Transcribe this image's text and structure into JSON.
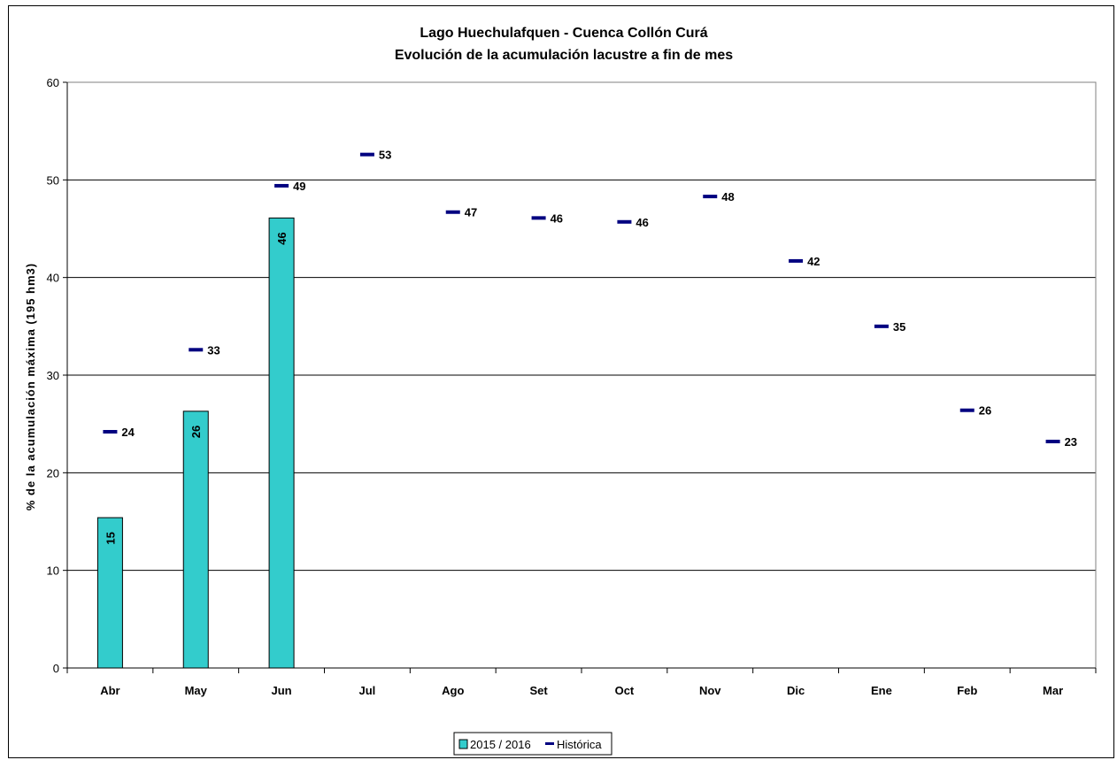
{
  "chart_data": {
    "type": "bar",
    "title": "Lago Huechulafquen - Cuenca Collón Curá",
    "subtitle": "Evolución de la acumulación lacustre a fin de mes",
    "ylabel": "% de la acumulación máxima (195 hm3)",
    "xlabel": "",
    "ylim": [
      0,
      60
    ],
    "yticks": [
      "0",
      "10",
      "20",
      "30",
      "40",
      "50",
      "60"
    ],
    "grid": true,
    "legend_position": "bottom",
    "categories": [
      "Abr",
      "May",
      "Jun",
      "Jul",
      "Ago",
      "Set",
      "Oct",
      "Nov",
      "Dic",
      "Ene",
      "Feb",
      "Mar"
    ],
    "series": [
      {
        "name": "2015 / 2016",
        "kind": "bar",
        "color": "#33CCCC",
        "values": [
          15.4,
          26.3,
          46.1,
          null,
          null,
          null,
          null,
          null,
          null,
          null,
          null,
          null
        ],
        "labels": [
          "15",
          "26",
          "46",
          "",
          "",
          "",
          "",
          "",
          "",
          "",
          "",
          ""
        ]
      },
      {
        "name": "Histórica",
        "kind": "marker",
        "color": "#000080",
        "values": [
          24.2,
          32.6,
          49.4,
          52.6,
          46.7,
          46.1,
          45.7,
          48.3,
          41.7,
          35.0,
          26.4,
          23.2
        ],
        "labels": [
          "24",
          "33",
          "49",
          "53",
          "47",
          "46",
          "46",
          "48",
          "42",
          "35",
          "26",
          "23"
        ]
      }
    ]
  }
}
